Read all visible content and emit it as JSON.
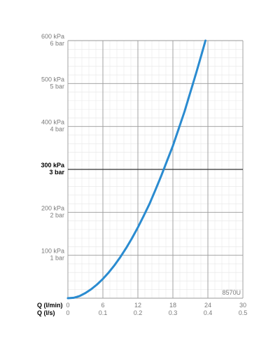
{
  "chart_data": {
    "type": "line",
    "x_label_lmin": "Q (l/min)",
    "x_label_ls": "Q (l/s)",
    "x_ticks_lmin": [
      "0",
      "6",
      "12",
      "18",
      "24",
      "30"
    ],
    "x_ticks_ls": [
      "0",
      "0.1",
      "0.2",
      "0.3",
      "0.4",
      "0.5"
    ],
    "y_ticks": [
      {
        "kpa": "100 kPa",
        "bar": "1 bar",
        "value": 100,
        "bold": false
      },
      {
        "kpa": "200 kPa",
        "bar": "2 bar",
        "value": 200,
        "bold": false
      },
      {
        "kpa": "300 kPa",
        "bar": "3 bar",
        "value": 300,
        "bold": true
      },
      {
        "kpa": "400 kPa",
        "bar": "4 bar",
        "value": 400,
        "bold": false
      },
      {
        "kpa": "500 kPa",
        "bar": "5 bar",
        "value": 500,
        "bold": false
      },
      {
        "kpa": "600 kPa",
        "bar": "6 bar",
        "value": 600,
        "bold": false
      }
    ],
    "xlim": [
      0,
      30
    ],
    "ylim": [
      0,
      600
    ],
    "grid": true,
    "model_label": "8570U",
    "series": [
      {
        "color": "#2a8bd0",
        "x": [
          0,
          1,
          2,
          3,
          4,
          5,
          6,
          7,
          8,
          9,
          10,
          11,
          12,
          13,
          14,
          15,
          16,
          17,
          18,
          19,
          20,
          21,
          22,
          23,
          24,
          24.5
        ],
        "y": [
          0,
          1,
          5,
          12,
          21,
          32,
          45,
          60,
          77,
          96,
          117,
          140,
          165,
          192,
          220,
          252,
          285,
          320,
          355,
          395,
          435,
          480,
          525,
          572,
          620,
          645
        ]
      }
    ]
  }
}
